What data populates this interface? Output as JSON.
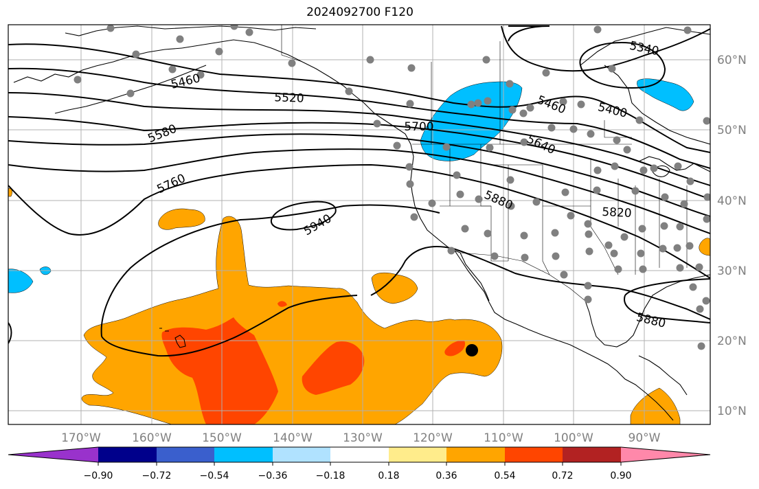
{
  "title": "2024092700 F120",
  "colors": {
    "positive_main": "#ffa500",
    "positive_strong": "#ff4500",
    "negative": "#00bfff",
    "contour": "#000000",
    "station": "#808080",
    "gridline": "#b0b0b0"
  },
  "longitude_labels": [
    "170°W",
    "160°W",
    "150°W",
    "140°W",
    "130°W",
    "120°W",
    "110°W",
    "100°W",
    "90°W"
  ],
  "latitude_labels": [
    "60°N",
    "50°N",
    "40°N",
    "30°N",
    "20°N",
    "10°N"
  ],
  "contour_labels": [
    "5340",
    "5400",
    "5460",
    "5460",
    "5520",
    "5580",
    "5640",
    "5700",
    "5760",
    "5820",
    "5880",
    "5880",
    "5940"
  ],
  "colorbar": {
    "ticks": [
      "−0.90",
      "−0.72",
      "−0.54",
      "−0.36",
      "−0.18",
      "0.18",
      "0.36",
      "0.54",
      "0.72",
      "0.90"
    ],
    "colors": [
      "#9932cc",
      "#00008b",
      "#3a5fcd",
      "#00bfff",
      "#b0e2ff",
      "#ffffff",
      "#ffec8b",
      "#ffa500",
      "#ff4500",
      "#b22222",
      "#ff88aa"
    ]
  }
}
